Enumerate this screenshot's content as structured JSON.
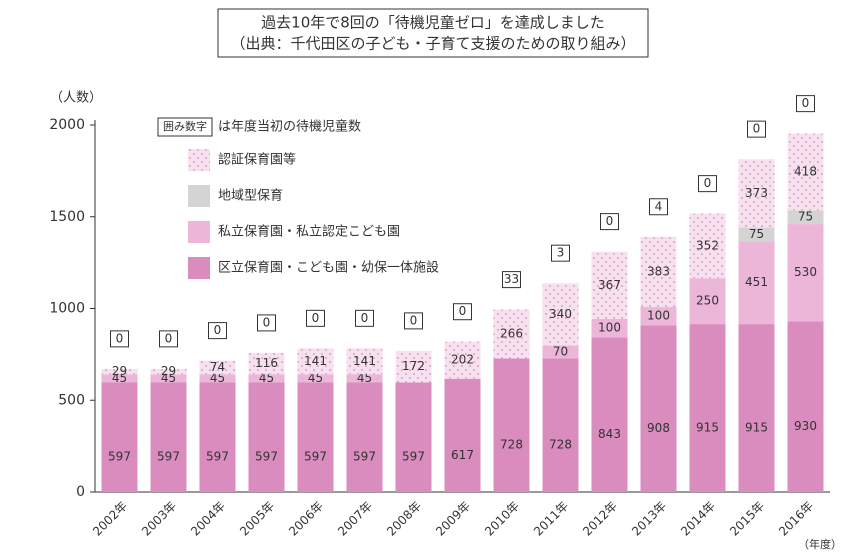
{
  "chart_data": {
    "type": "stacked_bar",
    "title": [
      "過去10年で8回の「待機児童ゼロ」を達成しました",
      "（出典：千代田区の子ども・子育て支援のための取り組み）"
    ],
    "y_unit": "（人数）",
    "x_unit": "（年度）",
    "note_boxed": "囲み数字",
    "note_text": "は年度当初の待機児童数",
    "categories": [
      "2002年",
      "2003年",
      "2004年",
      "2005年",
      "2006年",
      "2007年",
      "2008年",
      "2009年",
      "2010年",
      "2011年",
      "2012年",
      "2013年",
      "2014年",
      "2015年",
      "2016年"
    ],
    "series": [
      {
        "name": "区立保育園・こども園・幼保一体施設",
        "color": "#d98cbd",
        "values": [
          597,
          597,
          597,
          597,
          597,
          597,
          597,
          617,
          728,
          728,
          843,
          908,
          915,
          915,
          930
        ]
      },
      {
        "name": "私立保育園・私立認定こども園",
        "color": "#ebb6d8",
        "values": [
          45,
          45,
          45,
          45,
          45,
          45,
          null,
          null,
          null,
          70,
          100,
          100,
          250,
          451,
          530
        ]
      },
      {
        "name": "地域型保育",
        "color": "#d4d4d4",
        "values": [
          null,
          null,
          null,
          null,
          null,
          null,
          null,
          null,
          null,
          null,
          null,
          null,
          null,
          75,
          75
        ]
      },
      {
        "name": "認証保育園等",
        "color": "#f7e1ef",
        "values": [
          29,
          29,
          74,
          116,
          141,
          141,
          172,
          202,
          266,
          340,
          367,
          383,
          352,
          373,
          418
        ]
      }
    ],
    "waiting_children": [
      0,
      0,
      0,
      0,
      0,
      0,
      0,
      0,
      33,
      3,
      0,
      4,
      0,
      0,
      0
    ],
    "ylim": [
      0,
      2000
    ],
    "yticks": [
      0,
      500,
      1000,
      1500,
      2000
    ]
  }
}
